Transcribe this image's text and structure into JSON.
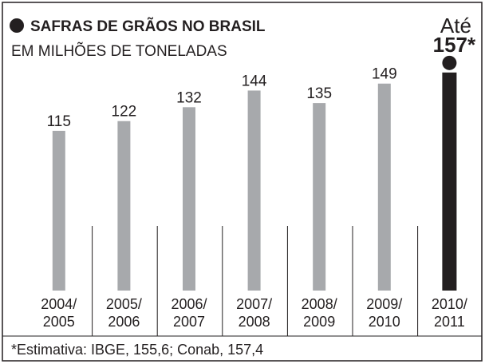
{
  "chart_data": {
    "type": "bar",
    "title": "SAFRAS DE GRÃOS NO BRASIL",
    "subtitle": "EM MILHÕES DE TONELADAS",
    "annotation": "Até",
    "footnote": "*Estimativa: IBGE, 155,6; Conab, 157,4",
    "categories": [
      "2004/ 2005",
      "2005/ 2006",
      "2006/ 2007",
      "2007/ 2008",
      "2008/ 2009",
      "2009/ 2010",
      "2010/ 2011"
    ],
    "values": [
      115,
      122,
      132,
      144,
      135,
      149,
      157
    ],
    "value_labels": [
      "115",
      "122",
      "132",
      "144",
      "135",
      "149",
      "157*"
    ],
    "colors": [
      "#a7a9ac",
      "#a7a9ac",
      "#a7a9ac",
      "#a7a9ac",
      "#a7a9ac",
      "#a7a9ac",
      "#231f20"
    ],
    "ylim": [
      0,
      200
    ]
  }
}
